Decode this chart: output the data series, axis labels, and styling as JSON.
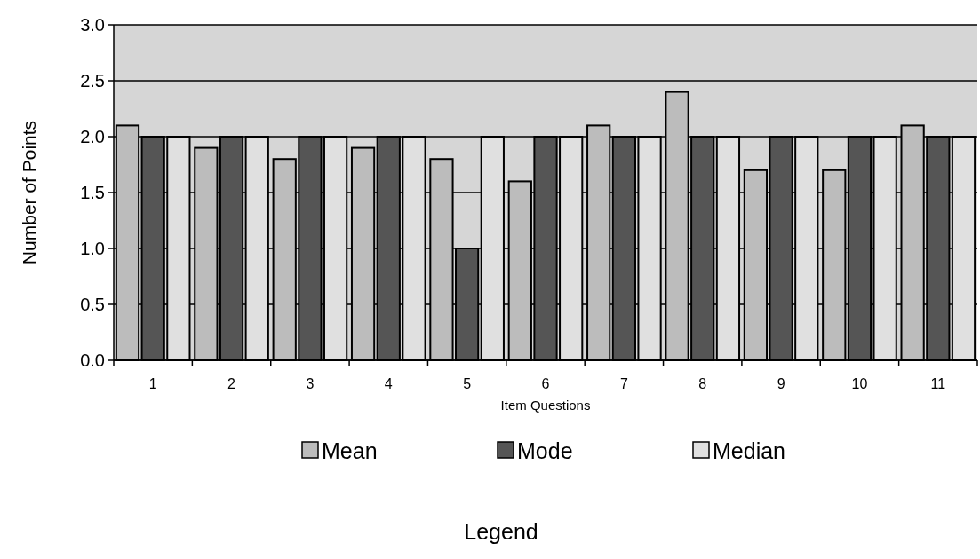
{
  "chart_data": {
    "type": "bar",
    "xlabel": "Item Questions",
    "ylabel": "Number of Points",
    "categories": [
      "1",
      "2",
      "3",
      "4",
      "5",
      "6",
      "7",
      "8",
      "9",
      "10",
      "11"
    ],
    "series": [
      {
        "name": "Mean",
        "color": "#bcbcbc",
        "values": [
          2.1,
          1.9,
          1.8,
          1.9,
          1.8,
          1.6,
          2.1,
          2.4,
          1.7,
          1.7,
          2.1
        ]
      },
      {
        "name": "Mode",
        "color": "#555555",
        "values": [
          2,
          2,
          2,
          2,
          1,
          2,
          2,
          2,
          2,
          2,
          2
        ]
      },
      {
        "name": "Median",
        "color": "#e0e0e0",
        "values": [
          2,
          2,
          2,
          2,
          2,
          2,
          2,
          2,
          2,
          2,
          2
        ]
      }
    ],
    "ylim": [
      0,
      3
    ],
    "yticks": [
      {
        "value": 0,
        "label": "0.0"
      },
      {
        "value": 0.5,
        "label": "0.5"
      },
      {
        "value": 1,
        "label": "1.0"
      },
      {
        "value": 1.5,
        "label": "1.5"
      },
      {
        "value": 2,
        "label": "2.0"
      },
      {
        "value": 2.5,
        "label": "2.5"
      },
      {
        "value": 3,
        "label": "3.0"
      }
    ],
    "grid": "y",
    "legend": "bottom",
    "annotations": [
      "Legend"
    ]
  }
}
